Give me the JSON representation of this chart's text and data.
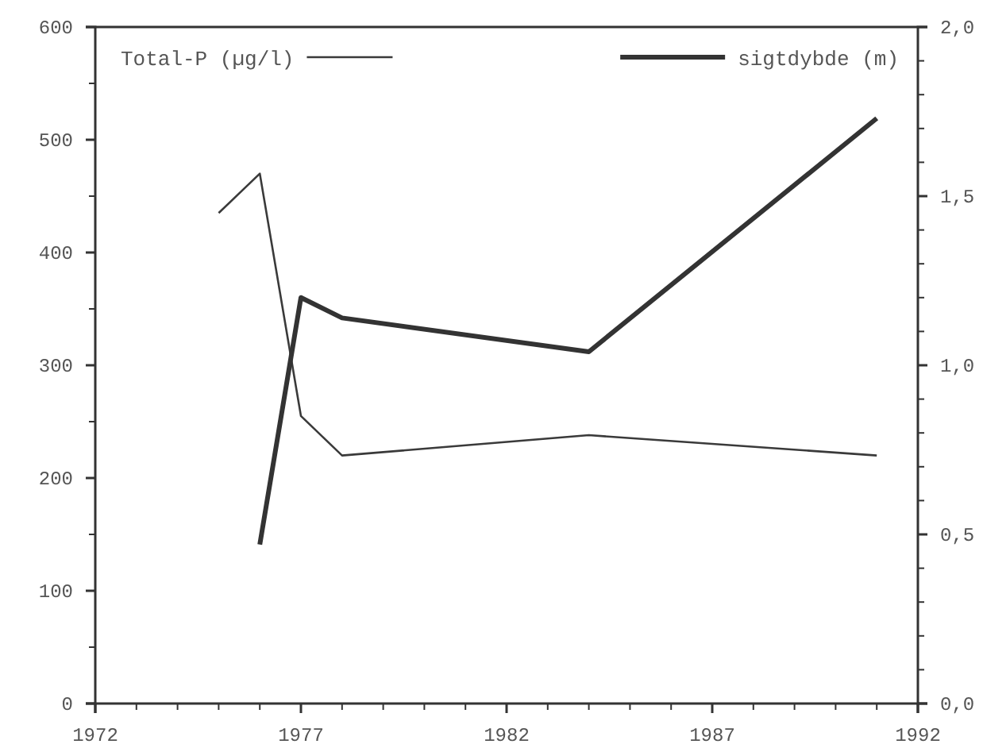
{
  "chart_data": {
    "type": "line",
    "x": [
      1975,
      1976,
      1977,
      1978,
      1984,
      1991
    ],
    "series": [
      {
        "name": "Total-P (µg/l)",
        "color": "#3a3a3a",
        "values": [
          435,
          470,
          255,
          220,
          238,
          220
        ]
      },
      {
        "name": "sigtdybde (m)",
        "color": "#333333",
        "axis": "y2",
        "x": [
          1976,
          1977,
          1978,
          1984,
          1991
        ],
        "values": [
          0.47,
          1.2,
          1.14,
          1.04,
          1.73
        ]
      }
    ],
    "xlim": [
      1972,
      1992
    ],
    "xticks": [
      1972,
      1977,
      1982,
      1987,
      1992
    ],
    "ylim": [
      0,
      600
    ],
    "yticks": [
      0,
      100,
      200,
      300,
      400,
      500,
      600
    ],
    "y2lim": [
      0,
      2
    ],
    "y2ticks": [
      {
        "value": 0,
        "label": "0,0"
      },
      {
        "value": 0.5,
        "label": "0,5"
      },
      {
        "value": 1,
        "label": "1,0"
      },
      {
        "value": 1.5,
        "label": "1,5"
      },
      {
        "value": 2,
        "label": "2,0"
      }
    ],
    "legend": "top",
    "grid": false,
    "marker": "none",
    "line_style": "solid"
  }
}
